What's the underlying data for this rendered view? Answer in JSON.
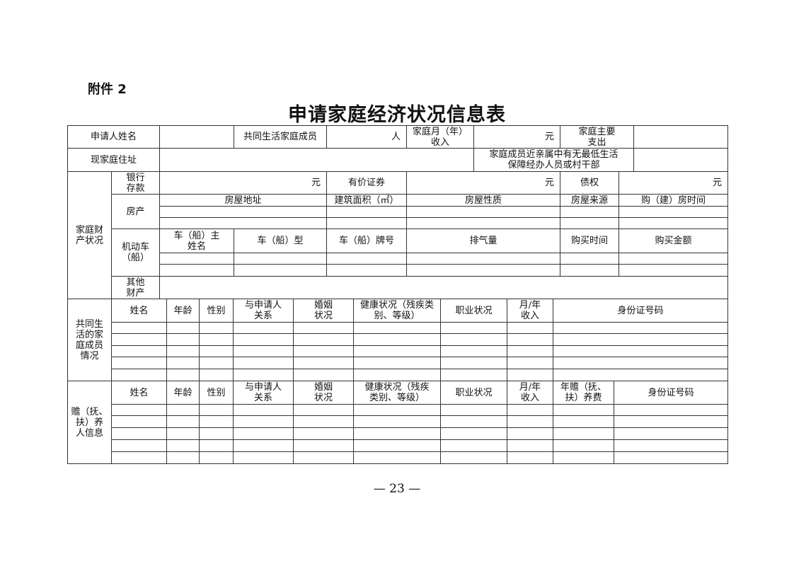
{
  "attachment_label": "附件 2",
  "title": "申请家庭经济状况信息表",
  "page_number": "— 23 —",
  "header": {
    "applicant_name": "申请人姓名",
    "co_members": "共同生活家庭成员",
    "person_unit": "人",
    "income": "家庭月（年）\n收入",
    "yuan": "元",
    "expense": "家庭主要\n支出",
    "address": "现家庭住址",
    "relatives": "家庭成员近亲属中有无最低生活\n保障经办人员或村干部"
  },
  "property": {
    "section": "家庭财\n产状况",
    "bank": "银行\n存款",
    "yuan": "元",
    "securities": "有价证券",
    "claims": "债权",
    "house": "房产",
    "house_cols": [
      "房屋地址",
      "建筑面积（㎡）",
      "房屋性质",
      "房屋来源",
      "购（建）房时间"
    ],
    "vehicle": "机动车\n（船）",
    "vehicle_cols": [
      "车（船）主\n姓名",
      "车（船）型",
      "车（船）牌号",
      "排气量",
      "购买时间",
      "购买金额"
    ],
    "other": "其他\n财产"
  },
  "members": {
    "section": "共同生\n活的家\n庭成员\n情况",
    "cols": [
      "姓名",
      "年龄",
      "性别",
      "与申请人\n关系",
      "婚姻\n状况",
      "健康状况（残疾类\n别、等级）",
      "职业状况",
      "月/年\n收入",
      "身份证号码"
    ]
  },
  "supported": {
    "section": "赡（抚、\n扶）养\n人信息",
    "cols": [
      "姓名",
      "年龄",
      "性别",
      "与申请人\n关系",
      "婚姻\n状况",
      "健康状况（残疾\n类别、等级）",
      "职业状况",
      "月/年\n收入",
      "年赡（抚、\n扶）养费",
      "身份证号码"
    ]
  }
}
